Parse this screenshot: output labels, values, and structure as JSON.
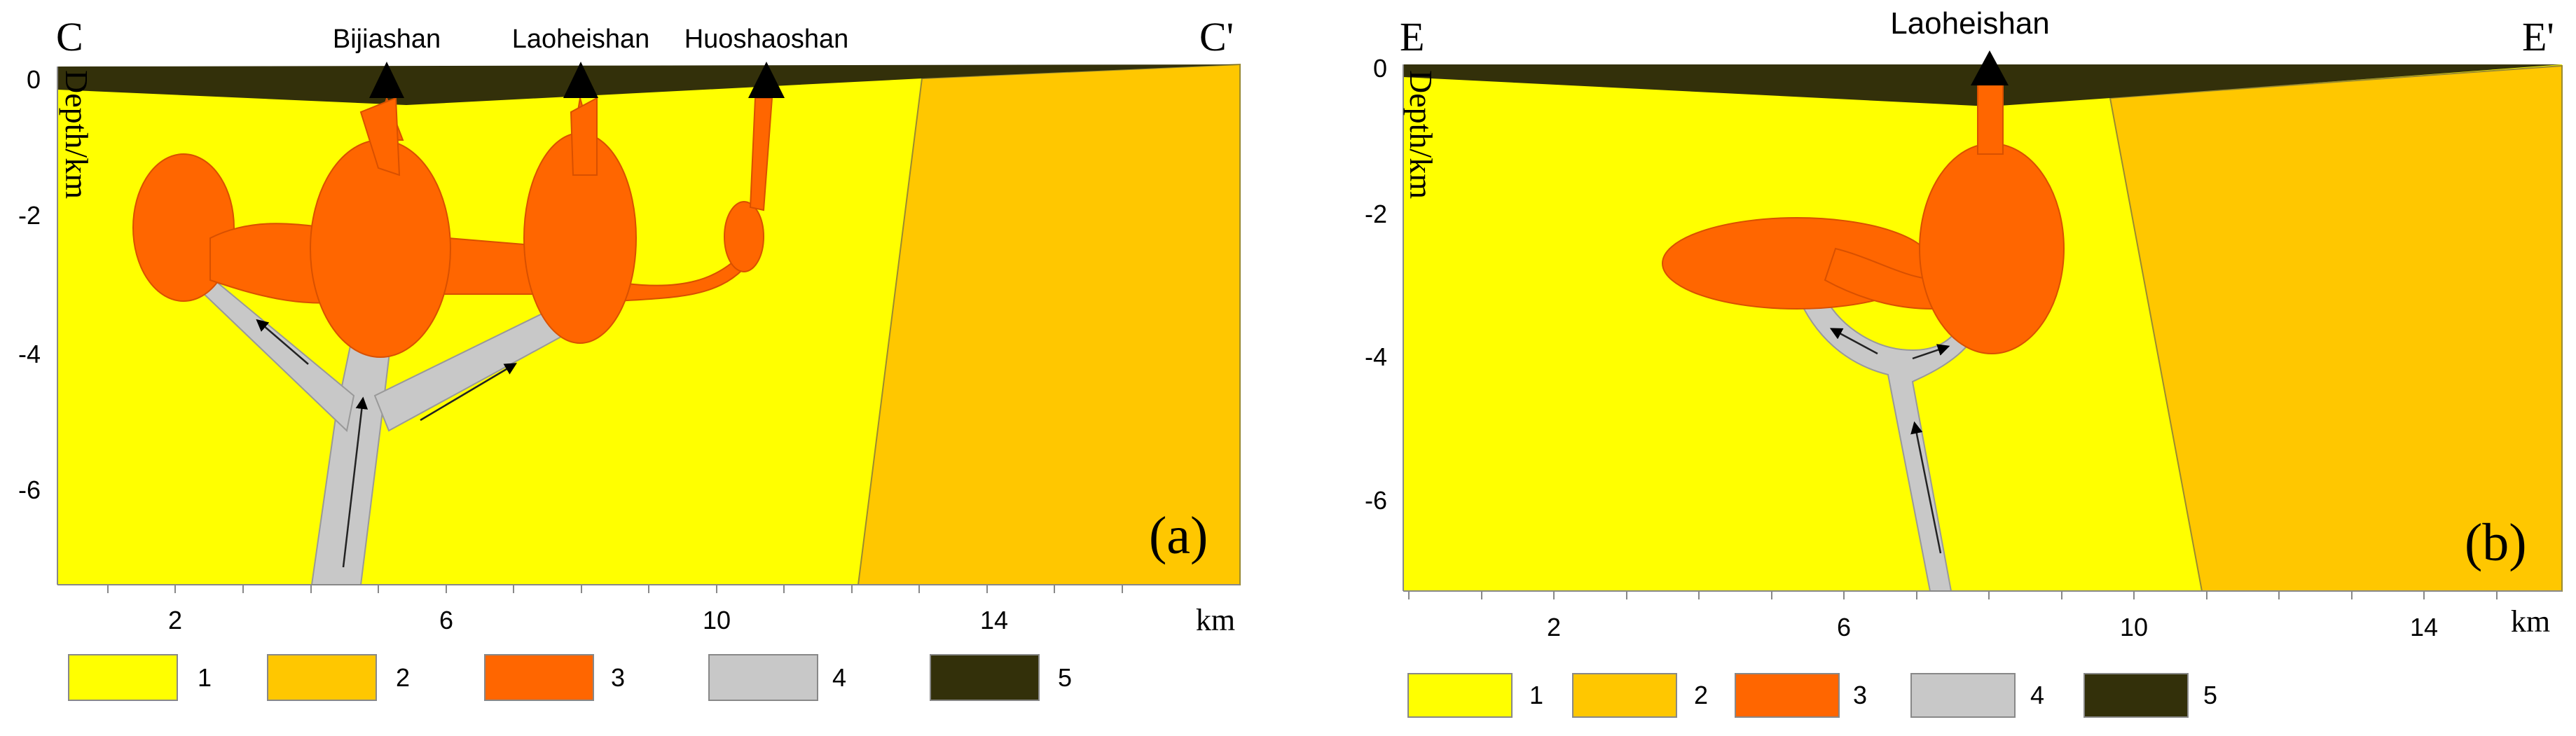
{
  "colors": {
    "unit1": "#FFFF00",
    "unit2": "#FFC700",
    "unit3": "#FF6600",
    "unit4": "#C8C8C8",
    "unit5": "#33300A"
  },
  "panel_a": {
    "section_start": "C",
    "section_end": "C'",
    "panel_label": "(a)",
    "y_label": "Depth/km",
    "x_unit": "km",
    "volcanoes": [
      "Bijiashan",
      "Laoheishan",
      "Huoshaoshan"
    ],
    "y_ticks": [
      "0",
      "-2",
      "-4",
      "-6"
    ],
    "x_ticks": [
      "2",
      "6",
      "10",
      "14"
    ]
  },
  "panel_b": {
    "section_start": "E",
    "section_end": "E'",
    "panel_label": "(b)",
    "y_label": "Depth/km",
    "x_unit": "km",
    "volcanoes": [
      "Laoheishan"
    ],
    "y_ticks": [
      "0",
      "-2",
      "-4",
      "-6"
    ],
    "x_ticks": [
      "2",
      "6",
      "10",
      "14"
    ]
  },
  "legend": {
    "items": [
      {
        "label": "1",
        "icon": "yellow-swatch"
      },
      {
        "label": "2",
        "icon": "amber-swatch"
      },
      {
        "label": "3",
        "icon": "orange-swatch"
      },
      {
        "label": "4",
        "icon": "gray-swatch"
      },
      {
        "label": "5",
        "icon": "dark-olive-swatch"
      }
    ]
  }
}
